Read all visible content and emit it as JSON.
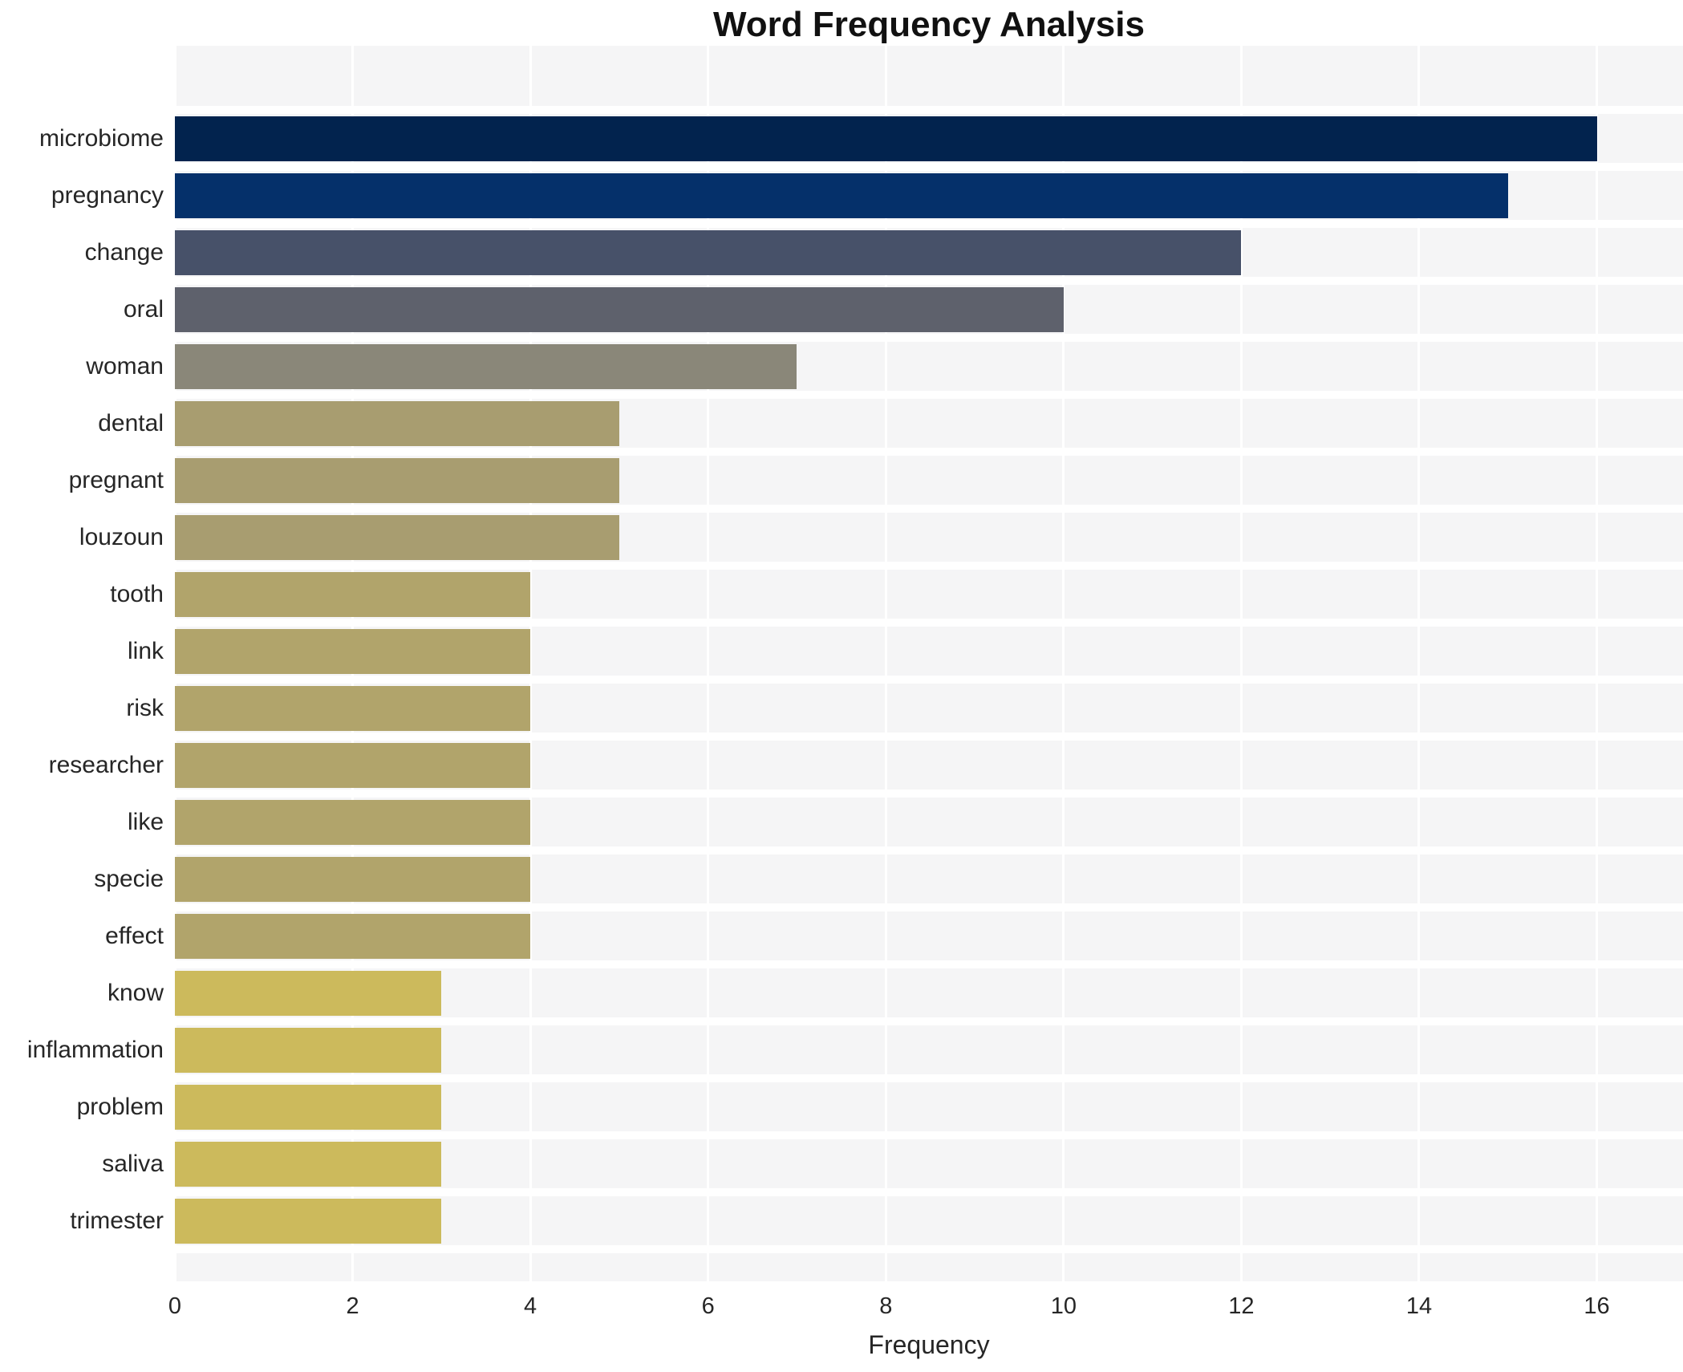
{
  "chart_data": {
    "type": "bar",
    "orientation": "horizontal",
    "title": "Word Frequency Analysis",
    "xlabel": "Frequency",
    "ylabel": "",
    "categories": [
      "microbiome",
      "pregnancy",
      "change",
      "oral",
      "woman",
      "dental",
      "pregnant",
      "louzoun",
      "tooth",
      "link",
      "risk",
      "researcher",
      "like",
      "specie",
      "effect",
      "know",
      "inflammation",
      "problem",
      "saliva",
      "trimester"
    ],
    "values": [
      16,
      15,
      12,
      10,
      7,
      5,
      5,
      5,
      4,
      4,
      4,
      4,
      4,
      4,
      4,
      3,
      3,
      3,
      3,
      3
    ],
    "bar_colors": [
      "#02234e",
      "#05306a",
      "#475169",
      "#5e616c",
      "#8a8779",
      "#a89d70",
      "#a89d70",
      "#a89d70",
      "#b1a46b",
      "#b1a46b",
      "#b1a46b",
      "#b1a46b",
      "#b1a46b",
      "#b1a46b",
      "#b1a46b",
      "#ccba5c",
      "#ccba5c",
      "#ccba5c",
      "#ccba5c",
      "#ccba5c"
    ],
    "xticks": [
      0,
      2,
      4,
      6,
      8,
      10,
      12,
      14,
      16
    ],
    "xlim": [
      0,
      16.97
    ],
    "grid": true,
    "legend": false,
    "plot_background": "#f5f5f6",
    "figure_background": "#ffffff",
    "gridline_color": "#ffffff",
    "text_color": "#262626"
  }
}
